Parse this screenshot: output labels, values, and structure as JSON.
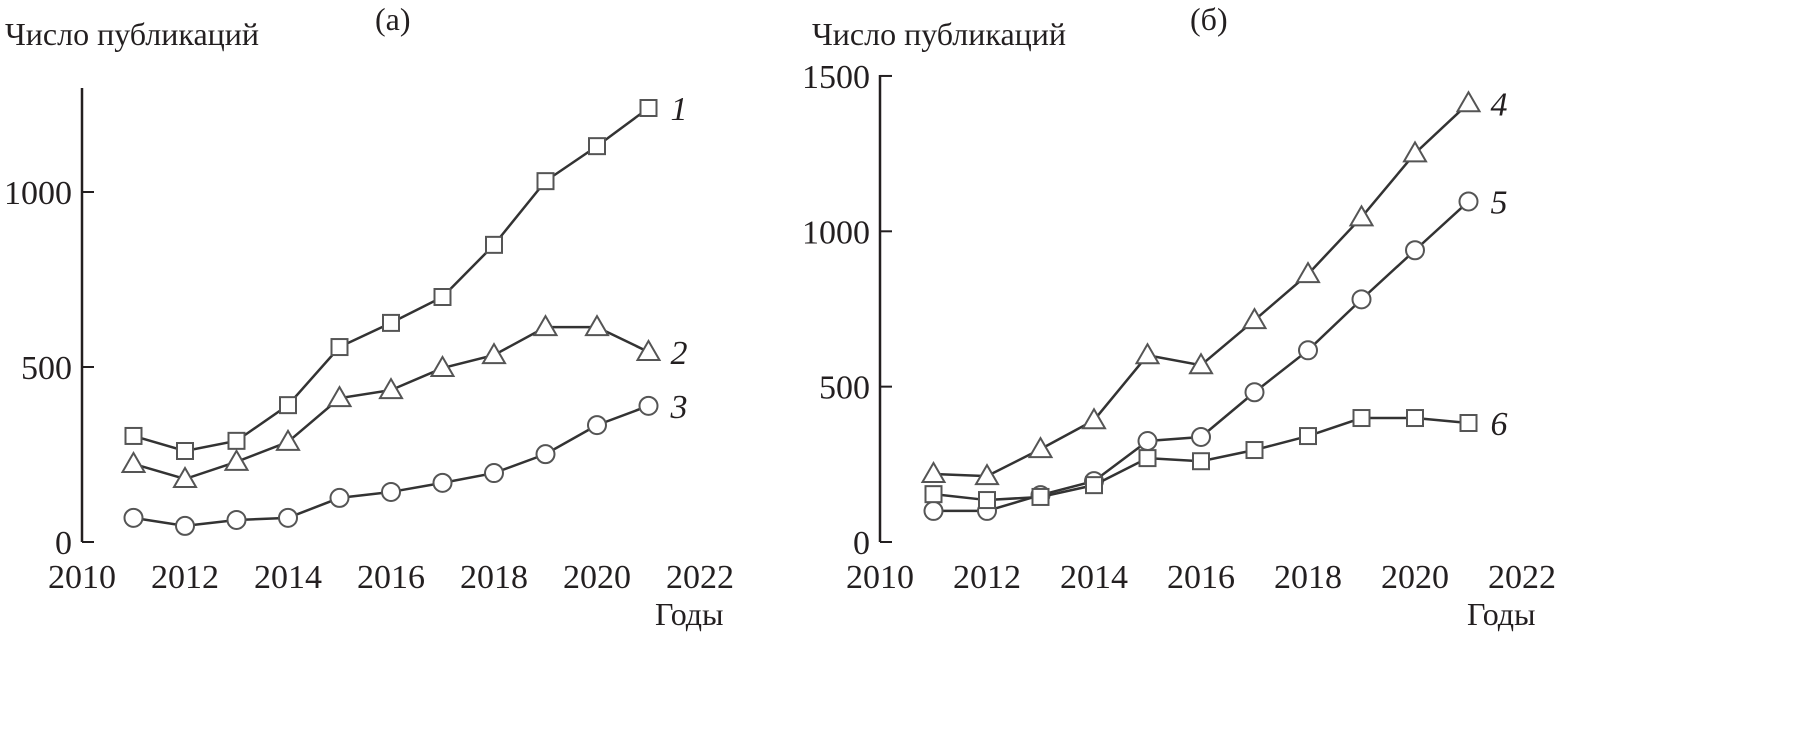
{
  "chart_data": [
    {
      "type": "line",
      "panel_label": "(a)",
      "ylabel": "Число публикаций",
      "xlabel": "Годы",
      "xlim": [
        2010,
        2022
      ],
      "ylim": [
        0,
        1300
      ],
      "xticks": [
        "2010",
        "2012",
        "2014",
        "2016",
        "2018",
        "2020",
        "2022"
      ],
      "yticks": [
        "0",
        "500",
        "1000"
      ],
      "grid": false,
      "x": [
        2011,
        2012,
        2013,
        2014,
        2015,
        2016,
        2017,
        2018,
        2019,
        2020,
        2021
      ],
      "series": [
        {
          "name": "1",
          "marker": "square",
          "values": [
            303,
            260,
            289,
            391,
            557,
            626,
            700,
            849,
            1031,
            1131,
            1240
          ]
        },
        {
          "name": "2",
          "marker": "triangle",
          "values": [
            223,
            180,
            229,
            286,
            411,
            434,
            497,
            534,
            614,
            614,
            543
          ]
        },
        {
          "name": "3",
          "marker": "circle",
          "values": [
            69,
            46,
            63,
            69,
            126,
            143,
            169,
            197,
            251,
            334,
            389
          ]
        }
      ]
    },
    {
      "type": "line",
      "panel_label": "(б)",
      "ylabel": "Число публикаций",
      "xlabel": "Годы",
      "xlim": [
        2010,
        2022
      ],
      "ylim": [
        0,
        1500
      ],
      "xticks": [
        "2010",
        "2012",
        "2014",
        "2016",
        "2018",
        "2020",
        "2022"
      ],
      "yticks": [
        "0",
        "500",
        "1000",
        "1500"
      ],
      "grid": false,
      "x": [
        2011,
        2012,
        2013,
        2014,
        2015,
        2016,
        2017,
        2018,
        2019,
        2020,
        2021
      ],
      "series": [
        {
          "name": "4",
          "marker": "triangle",
          "values": [
            219,
            212,
            299,
            392,
            601,
            569,
            714,
            862,
            1045,
            1251,
            1412
          ]
        },
        {
          "name": "5",
          "marker": "circle",
          "values": [
            100,
            100,
            151,
            196,
            325,
            338,
            482,
            617,
            781,
            939,
            1096
          ]
        },
        {
          "name": "6",
          "marker": "square",
          "values": [
            154,
            135,
            145,
            183,
            270,
            260,
            296,
            341,
            399,
            399,
            383
          ]
        }
      ]
    }
  ]
}
